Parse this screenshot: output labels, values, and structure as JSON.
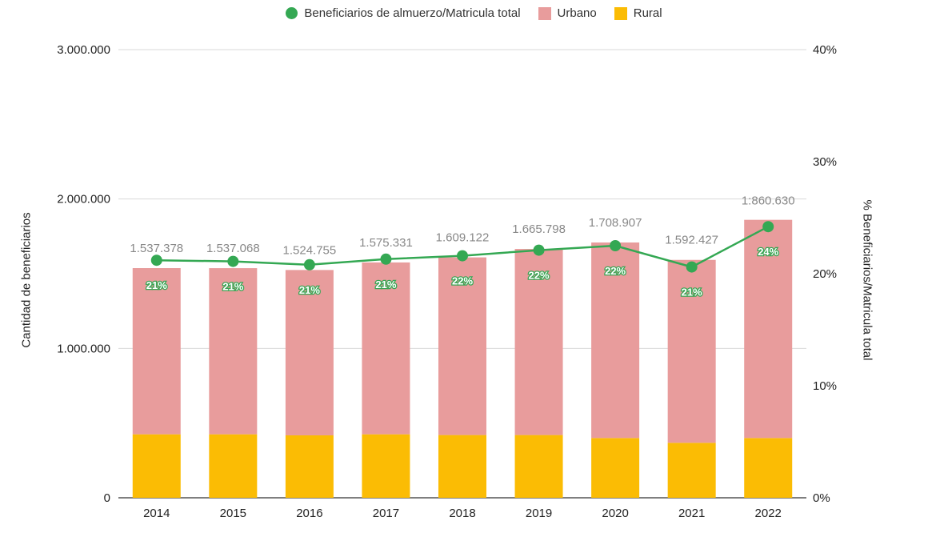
{
  "chart_data": {
    "type": "bar",
    "stacked": true,
    "categories": [
      "2014",
      "2015",
      "2016",
      "2017",
      "2018",
      "2019",
      "2020",
      "2021",
      "2022"
    ],
    "series": [
      {
        "name": "Rural",
        "color": "#FBBC04",
        "values": [
          425000,
          425000,
          418000,
          425000,
          420000,
          420000,
          400000,
          368000,
          400000
        ]
      },
      {
        "name": "Urbano",
        "color": "#E89C9C",
        "values": [
          1112378,
          1112068,
          1106755,
          1150331,
          1189122,
          1245798,
          1308907,
          1224427,
          1460630
        ]
      }
    ],
    "totals": [
      1537378,
      1537068,
      1524755,
      1575331,
      1609122,
      1665798,
      1708907,
      1592427,
      1860630
    ],
    "total_labels": [
      "1.537.378",
      "1.537.068",
      "1.524.755",
      "1.575.331",
      "1.609.122",
      "1.665.798",
      "1.708.907",
      "1.592.427",
      "1:860.630"
    ],
    "line_series": {
      "name": "Beneficiarios de almuerzo/Matricula total",
      "color": "#34A853",
      "values": [
        21.2,
        21.1,
        20.8,
        21.3,
        21.6,
        22.1,
        22.5,
        20.6,
        24.2
      ],
      "labels": [
        "21%",
        "21%",
        "21%",
        "21%",
        "22%",
        "22%",
        "22%",
        "21%",
        "24%"
      ],
      "axis": "right"
    },
    "ylabel": "Cantidad de beneficiarios",
    "ylabel_right": "% Beneficiarios/Matricula total",
    "ylim": [
      0,
      3000000
    ],
    "ylim_right": [
      0,
      40
    ],
    "y_ticks": [
      0,
      1000000,
      2000000,
      3000000
    ],
    "y_tick_labels": [
      "0",
      "1.000.000",
      "2.000.000",
      "3.000.000"
    ],
    "y_right_ticks": [
      0,
      10,
      20,
      30,
      40
    ],
    "y_right_tick_labels": [
      "0%",
      "10%",
      "20%",
      "30%",
      "40%"
    ],
    "grid": true,
    "legend_position": "top-center"
  },
  "legend": [
    {
      "label": "Beneficiarios de almuerzo/Matricula total",
      "color": "#34A853",
      "shape": "circle"
    },
    {
      "label": "Urbano",
      "color": "#E89C9C",
      "shape": "square"
    },
    {
      "label": "Rural",
      "color": "#FBBC04",
      "shape": "square"
    }
  ]
}
